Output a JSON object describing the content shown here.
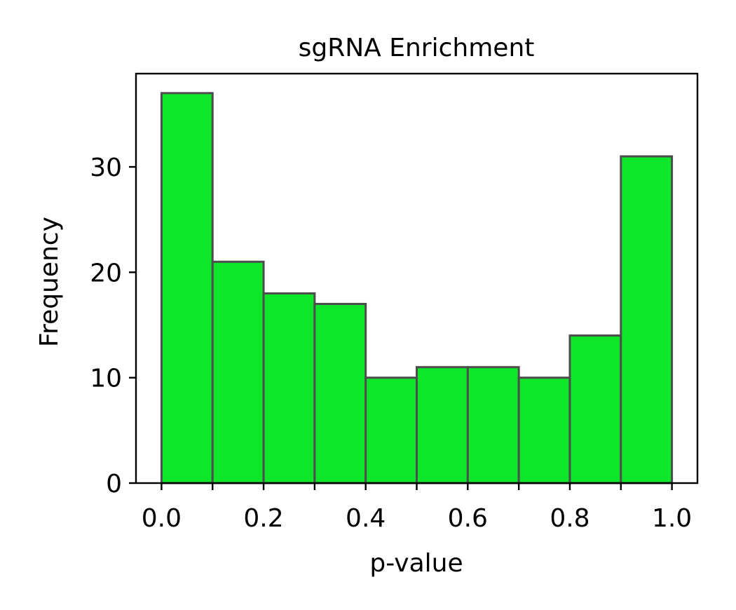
{
  "chart_data": {
    "type": "bar",
    "title": "sgRNA Enrichment",
    "xlabel": "p-value",
    "ylabel": "Frequency",
    "bin_edges": [
      0.0,
      0.1,
      0.2,
      0.3,
      0.4,
      0.5,
      0.6,
      0.7,
      0.8,
      0.9,
      1.0
    ],
    "values": [
      37,
      21,
      18,
      17,
      10,
      11,
      11,
      10,
      14,
      31
    ],
    "xlim": [
      -0.05,
      1.05
    ],
    "ylim": [
      0,
      38.85
    ],
    "x_ticks": [
      0.0,
      0.2,
      0.4,
      0.6,
      0.8,
      1.0
    ],
    "x_tick_labels": [
      "0.0",
      "0.2",
      "0.4",
      "0.6",
      "0.8",
      "1.0"
    ],
    "x_minor_ticks": [
      0.1,
      0.3,
      0.5,
      0.7,
      0.9
    ],
    "y_ticks": [
      0,
      10,
      20,
      30
    ],
    "y_tick_labels": [
      "0",
      "10",
      "20",
      "30"
    ],
    "grid": false,
    "bar_color": "#0ee62a",
    "edge_color": "#4d4d4d"
  }
}
